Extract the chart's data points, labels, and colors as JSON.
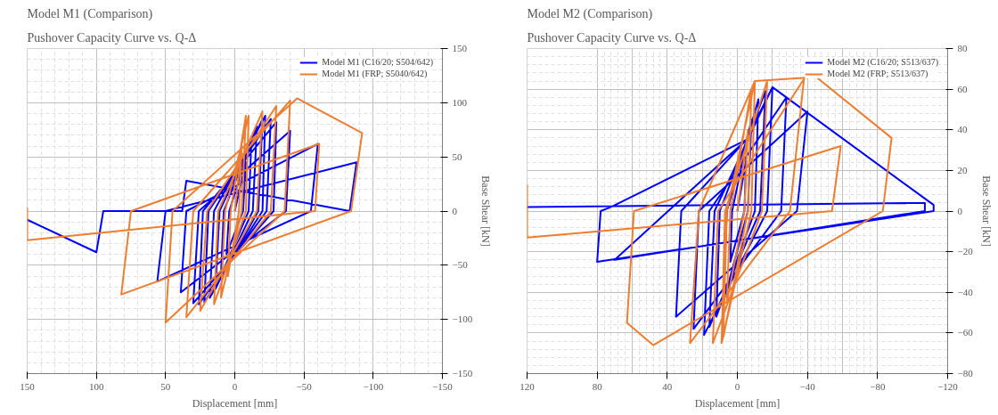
{
  "chart_data": [
    {
      "type": "line",
      "title": "Model M1 (Comparison)",
      "subtitle": "Pushover Capacity Curve vs. Q-Δ",
      "xlabel": "Displacement [mm]",
      "ylabel": "Base Shear [kN]",
      "xlim": [
        150,
        -150
      ],
      "ylim": [
        -150,
        150
      ],
      "xticks": [
        150,
        100,
        50,
        0,
        -50,
        -100,
        -150
      ],
      "yticks": [
        -150,
        -100,
        -50,
        0,
        50,
        100,
        150
      ],
      "grid": true,
      "legend": "top right",
      "marker": "none",
      "line_style": "solid",
      "series": [
        {
          "name": "Model M1 (C16/20; S504/642)",
          "color": "#0000ff",
          "x": [
            0,
            -8,
            -6,
            6,
            4,
            -12,
            -10,
            10,
            8,
            -16,
            -13,
            14,
            11,
            -20,
            -17,
            18,
            15,
            -22,
            -20,
            22,
            19,
            -26,
            -23,
            26,
            23,
            -30,
            -28,
            30,
            26,
            -40,
            -37,
            39,
            35,
            -60,
            -55,
            56,
            50,
            -88,
            -83,
            35,
            38,
            95,
            100,
            150
          ],
          "values": [
            0,
            45,
            0,
            -40,
            0,
            65,
            0,
            -60,
            0,
            78,
            0,
            -72,
            0,
            85,
            0,
            -80,
            0,
            88,
            0,
            -84,
            0,
            85,
            0,
            -86,
            0,
            82,
            0,
            -85,
            0,
            74,
            0,
            -75,
            0,
            62,
            0,
            -65,
            0,
            45,
            0,
            28,
            0,
            0,
            -38,
            -8
          ]
        },
        {
          "name": "Model M1 (FRP; S5040/642)",
          "color": "#ed7d31",
          "x": [
            0,
            -5,
            -3,
            5,
            3,
            -8,
            -5,
            10,
            7,
            -10,
            -8,
            15,
            12,
            -20,
            -16,
            25,
            20,
            -30,
            -26,
            35,
            30,
            -40,
            -36,
            50,
            45,
            -45,
            -92,
            -84,
            82,
            75,
            -61,
            -58,
            150,
            150
          ],
          "values": [
            0,
            60,
            0,
            -60,
            0,
            88,
            0,
            -80,
            0,
            88,
            0,
            -86,
            0,
            92,
            0,
            -92,
            0,
            97,
            0,
            -98,
            0,
            102,
            0,
            -103,
            0,
            104,
            72,
            0,
            -77,
            0,
            62,
            0,
            -27,
            3
          ]
        }
      ]
    },
    {
      "type": "line",
      "title": "Model M2 (Comparison)",
      "subtitle": "Pushover Capacity Curve vs. Q-Δ",
      "xlabel": "Displacement [mm]",
      "ylabel": "Base Shear [kN]",
      "xlim": [
        120,
        -120
      ],
      "ylim": [
        -80,
        80
      ],
      "xticks": [
        120,
        80,
        40,
        0,
        -40,
        -80,
        -120
      ],
      "yticks": [
        -80,
        -60,
        -40,
        -20,
        0,
        20,
        40,
        60,
        80
      ],
      "grid": true,
      "legend": "top right",
      "marker": "none",
      "line_style": "solid",
      "series": [
        {
          "name": "Model M2 (C16/20; S513/637)",
          "color": "#0000ff",
          "x": [
            0,
            -5,
            -4,
            4,
            3,
            -8,
            -6,
            8,
            6,
            -12,
            -10,
            12,
            10,
            -16,
            -13,
            16,
            13,
            -20,
            -17,
            19,
            16,
            -28,
            -25,
            25,
            22,
            -40,
            -34,
            35,
            32,
            -5,
            -20,
            -112,
            -112,
            80,
            78,
            72,
            -5,
            70,
            -107,
            -107,
            120
          ],
          "values": [
            0,
            25,
            0,
            -25,
            0,
            45,
            0,
            -45,
            0,
            55,
            0,
            -52,
            0,
            59,
            0,
            -57,
            0,
            61,
            0,
            -61,
            0,
            56,
            0,
            -58,
            0,
            49,
            0,
            -52,
            0,
            35,
            61,
            3,
            0,
            -25,
            0,
            2,
            35,
            -24,
            0,
            4,
            2
          ]
        },
        {
          "name": "Model M2 (FRP; S513/637)",
          "color": "#ed7d31",
          "x": [
            0,
            -6,
            -4,
            6,
            4,
            -8,
            -6,
            8,
            6,
            -10,
            -8,
            9,
            7,
            -17,
            -14,
            14,
            11,
            -38,
            -30,
            27,
            22,
            -10,
            -45,
            -88,
            -83,
            48,
            63,
            59,
            -59,
            -54,
            120,
            120
          ],
          "values": [
            0,
            40,
            0,
            -45,
            0,
            60,
            0,
            -62,
            0,
            64,
            0,
            -65,
            0,
            64,
            0,
            -65,
            0,
            65,
            0,
            -65,
            0,
            64,
            66,
            36,
            0,
            -66,
            -55,
            0,
            32,
            0,
            -13,
            13
          ]
        }
      ]
    }
  ]
}
